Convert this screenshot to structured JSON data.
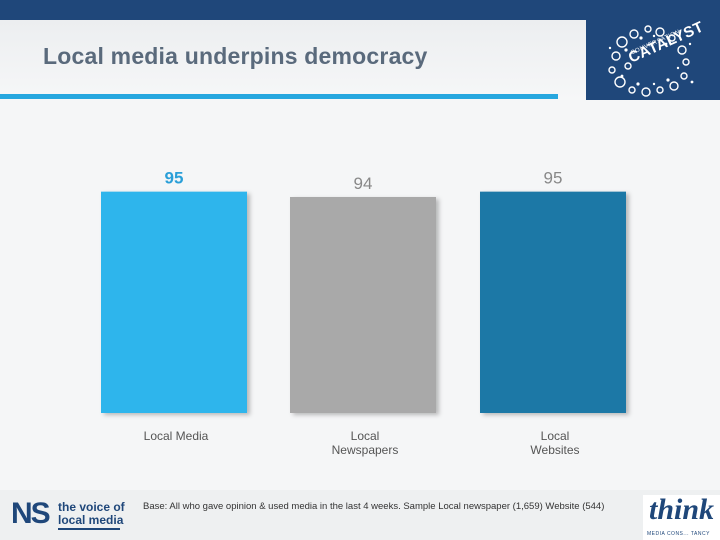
{
  "title": "Local media underpins democracy",
  "logos": {
    "catalyst_small": "CONVERSATION",
    "catalyst": "CATALYST",
    "ns_big": "NS",
    "ns_line1": "the voice of",
    "ns_line2": "local media",
    "think_word": "think",
    "think_tag": "MEDIA CONS... TANCY"
  },
  "footnote": "Base: All who gave opinion & used media in the last 4 weeks. Sample Local newspaper (1,659) Website (544)",
  "colors": {
    "header": "#1f477a",
    "accent": "#27a7df",
    "bar_local_media": "#2db5ec",
    "bar_local_newspapers": "#a9a9a9",
    "bar_local_websites": "#1a78a6"
  },
  "chart_data": {
    "type": "bar",
    "categories": [
      "Local Media",
      "Local Newspapers",
      "Local Websites"
    ],
    "category_lines": [
      [
        "Local Media"
      ],
      [
        "Local",
        "Newspapers"
      ],
      [
        "Local",
        "Websites"
      ]
    ],
    "values": [
      95,
      94,
      95
    ],
    "value_label_colors": [
      "#2a9fd8",
      "#888888",
      "#888888"
    ],
    "bar_colors": [
      "#2db5ec",
      "#a9a9a9",
      "#1a78a6"
    ],
    "ylim": [
      0,
      100
    ]
  }
}
